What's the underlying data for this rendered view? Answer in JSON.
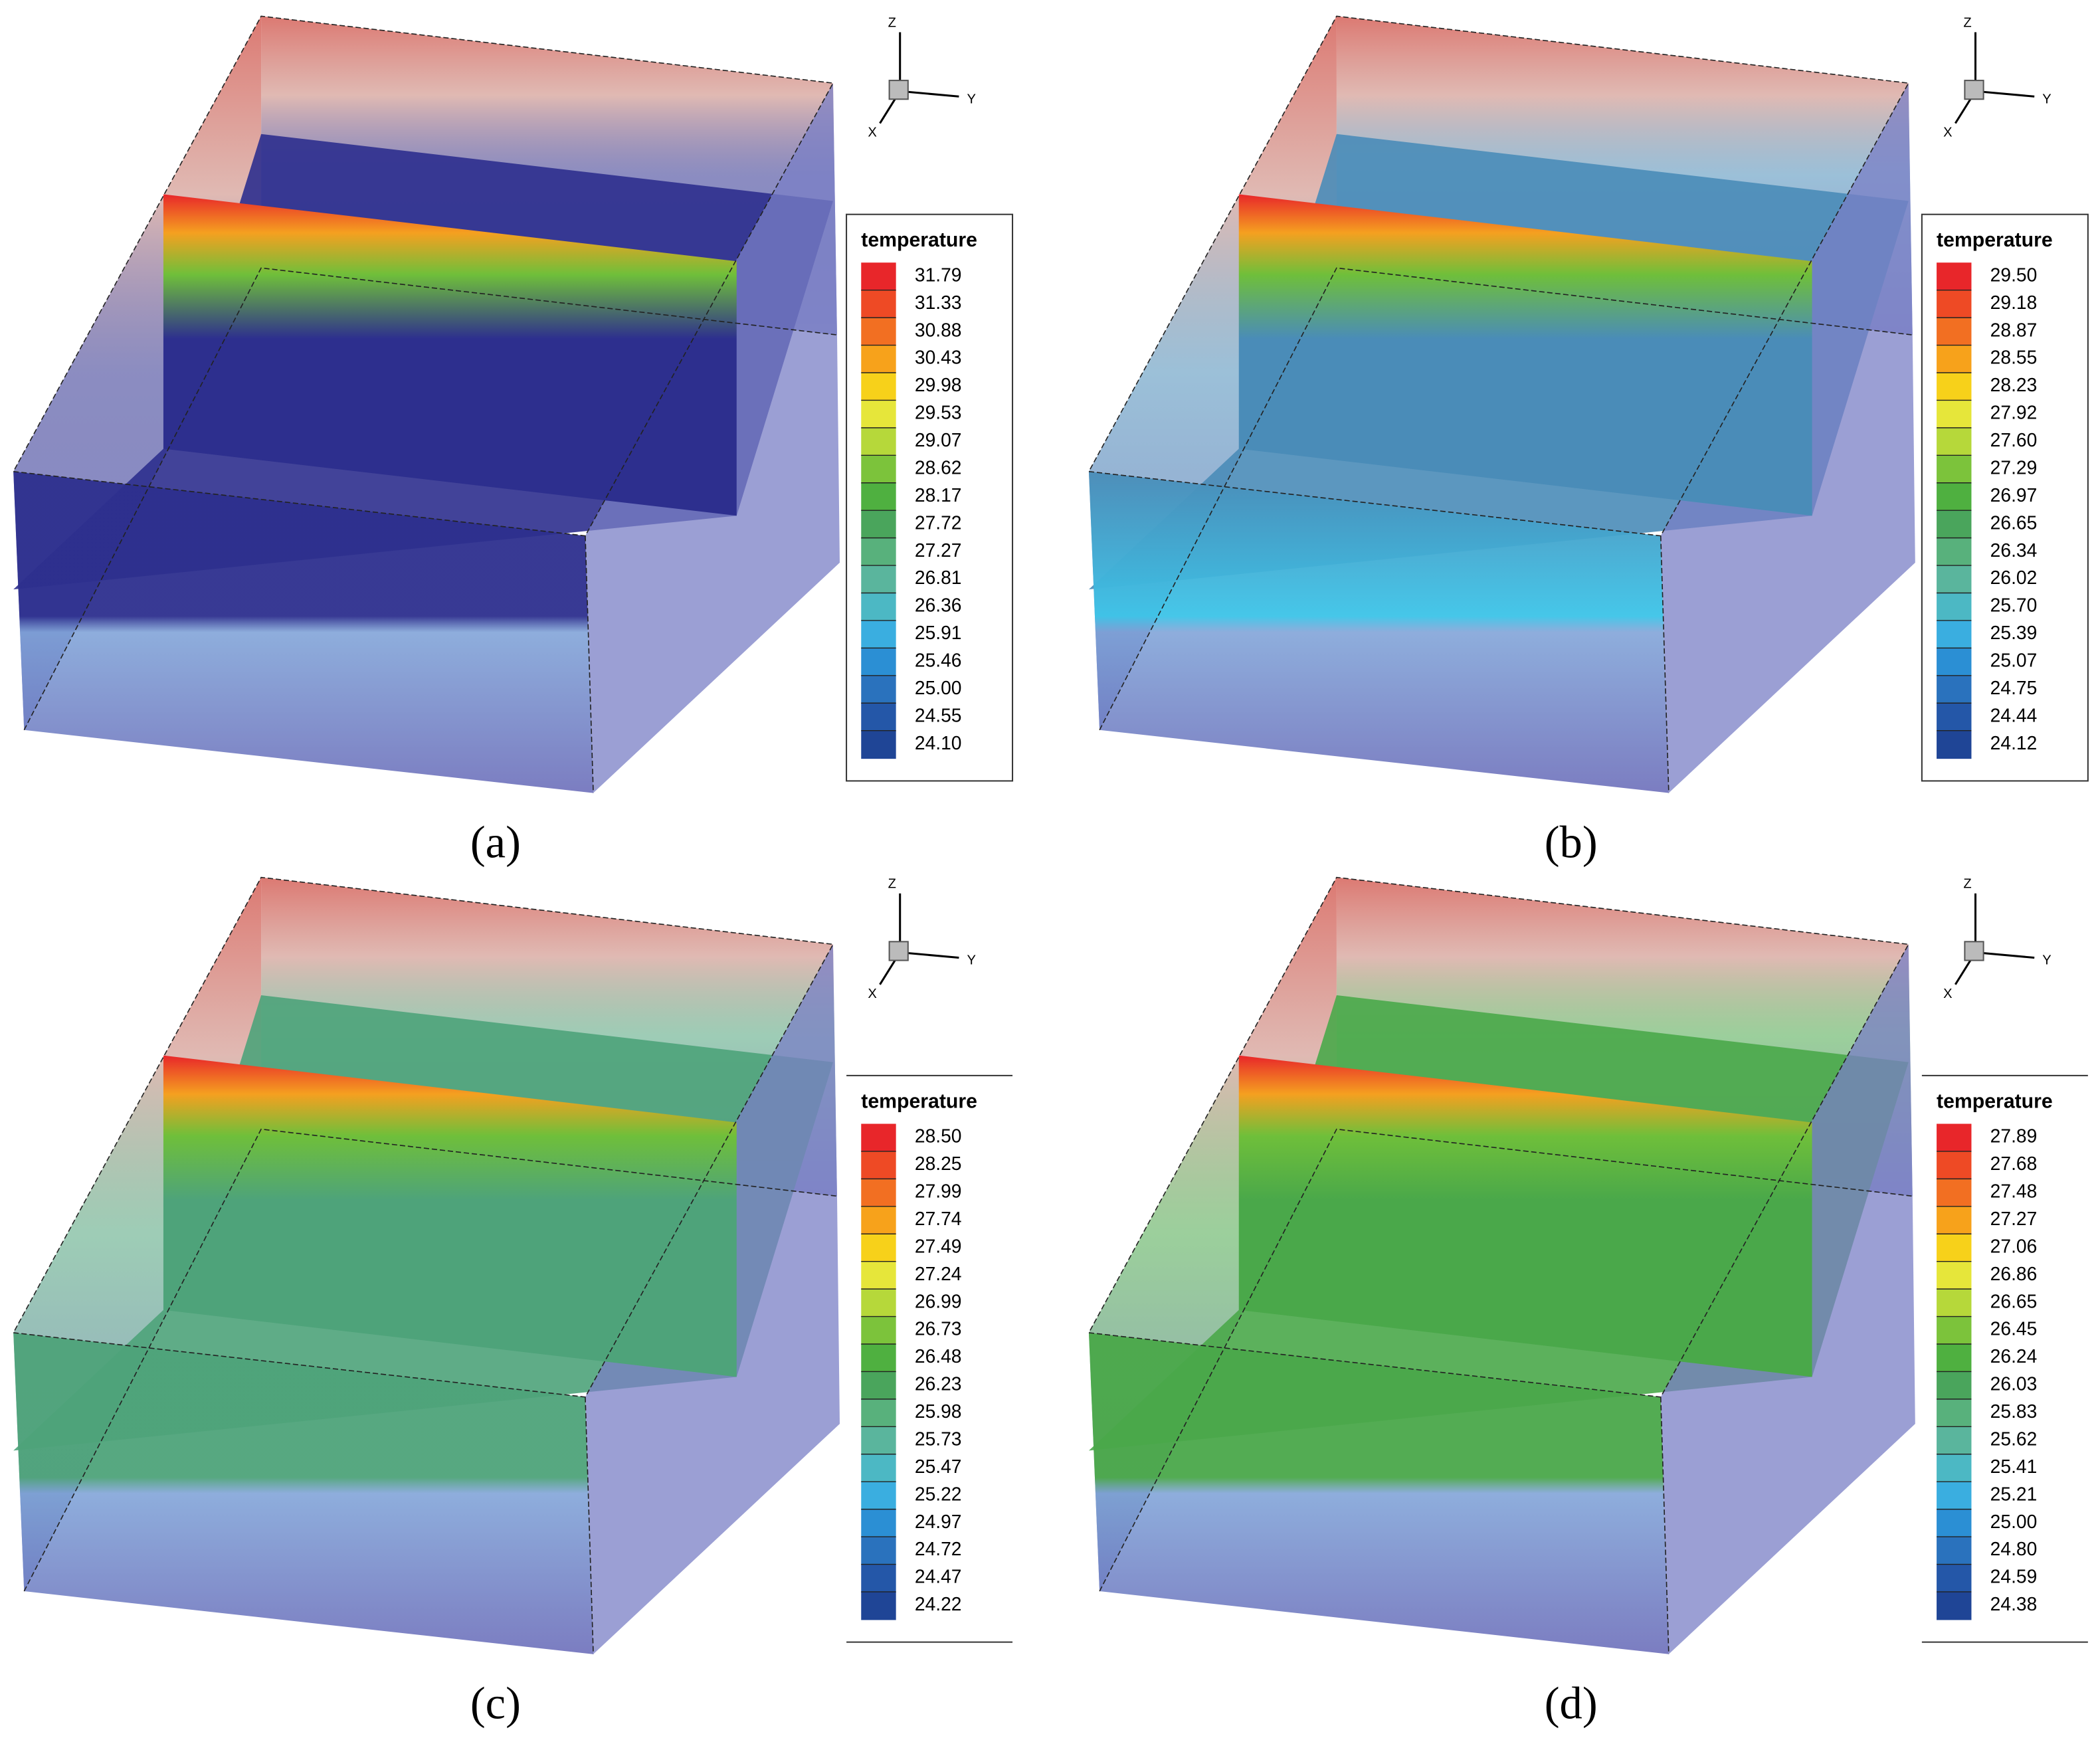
{
  "panels": [
    {
      "label": "(a)",
      "legend_title": "temperature",
      "axes": {
        "z": "Z",
        "y": "Y",
        "x": "X"
      },
      "levels": [
        "31.79",
        "31.33",
        "30.88",
        "30.43",
        "29.98",
        "29.53",
        "29.07",
        "28.62",
        "28.17",
        "27.72",
        "27.27",
        "26.81",
        "26.36",
        "25.91",
        "25.46",
        "25.00",
        "24.55",
        "24.10"
      ]
    },
    {
      "label": "(b)",
      "legend_title": "temperature",
      "axes": {
        "z": "Z",
        "y": "Y",
        "x": "X"
      },
      "levels": [
        "29.50",
        "29.18",
        "28.87",
        "28.55",
        "28.23",
        "27.92",
        "27.60",
        "27.29",
        "26.97",
        "26.65",
        "26.34",
        "26.02",
        "25.70",
        "25.39",
        "25.07",
        "24.75",
        "24.44",
        "24.12"
      ]
    },
    {
      "label": "(c)",
      "legend_title": "temperature",
      "axes": {
        "z": "Z",
        "y": "Y",
        "x": "X"
      },
      "levels": [
        "28.50",
        "28.25",
        "27.99",
        "27.74",
        "27.49",
        "27.24",
        "26.99",
        "26.73",
        "26.48",
        "26.23",
        "25.98",
        "25.73",
        "25.47",
        "25.22",
        "24.97",
        "24.72",
        "24.47",
        "24.22"
      ]
    },
    {
      "label": "(d)",
      "legend_title": "temperature",
      "axes": {
        "z": "Z",
        "y": "Y",
        "x": "X"
      },
      "levels": [
        "27.89",
        "27.68",
        "27.48",
        "27.27",
        "27.06",
        "26.86",
        "26.65",
        "26.45",
        "26.24",
        "26.03",
        "25.83",
        "25.62",
        "25.41",
        "25.21",
        "25.00",
        "24.80",
        "24.59",
        "24.38"
      ]
    }
  ]
}
